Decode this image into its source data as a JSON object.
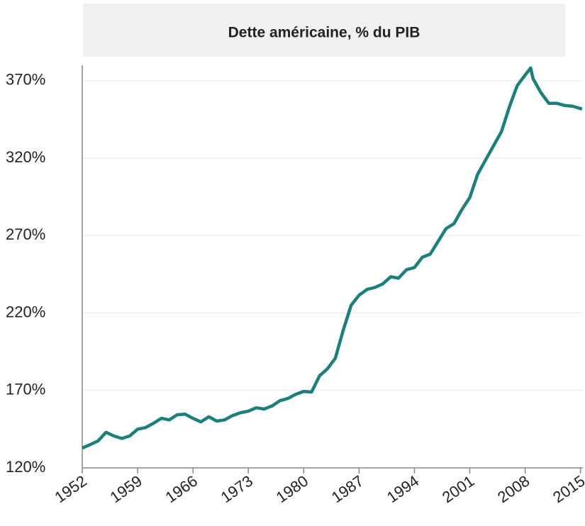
{
  "chart_data": {
    "type": "line",
    "title": "Dette américaine, % du PIB",
    "color": "#1d7f7b",
    "grid": true,
    "x": [
      1952,
      1953,
      1954,
      1955,
      1956,
      1957,
      1958,
      1959,
      1960,
      1961,
      1962,
      1963,
      1964,
      1965,
      1966,
      1967,
      1968,
      1969,
      1970,
      1971,
      1972,
      1973,
      1974,
      1975,
      1976,
      1977,
      1978,
      1979,
      1980,
      1981,
      1982,
      1983,
      1984,
      1985,
      1986,
      1987,
      1988,
      1989,
      1990,
      1991,
      1992,
      1993,
      1994,
      1995,
      1996,
      1997,
      1998,
      1999,
      2000,
      2001,
      2002,
      2003,
      2004,
      2005,
      2006,
      2007,
      2008,
      2008.7,
      2009,
      2010,
      2011,
      2012,
      2013,
      2014,
      2015.2
    ],
    "values": [
      132.8,
      135,
      137.4,
      143,
      140.6,
      139,
      140.6,
      145,
      146,
      148.8,
      152,
      151,
      154.3,
      154.7,
      152,
      149.7,
      153,
      150.2,
      151,
      153.8,
      155.6,
      156.6,
      158.8,
      158,
      160,
      163.4,
      164.8,
      167.5,
      169.4,
      169,
      179.4,
      184,
      190.8,
      209,
      225,
      231.5,
      235.2,
      236.5,
      238.8,
      243.4,
      242.5,
      248,
      249.3,
      256,
      258,
      266.3,
      274.5,
      277.7,
      286.8,
      294.6,
      309.7,
      318.8,
      328,
      337,
      353,
      366.8,
      373.7,
      378.2,
      371.4,
      362.2,
      355.4,
      355.4,
      354,
      353.5,
      351.7
    ],
    "xlim": [
      1952,
      2015.3
    ],
    "xticks": [
      1952,
      1959,
      1966,
      1973,
      1980,
      1987,
      1994,
      2001,
      2008,
      2015
    ],
    "ylim": [
      120,
      380
    ],
    "yticks": [
      {
        "value": 120,
        "label": "120%"
      },
      {
        "value": 170,
        "label": "170%"
      },
      {
        "value": 220,
        "label": "220%"
      },
      {
        "value": 270,
        "label": "270%"
      },
      {
        "value": 320,
        "label": "320%"
      },
      {
        "value": 370,
        "label": "370%"
      }
    ]
  }
}
